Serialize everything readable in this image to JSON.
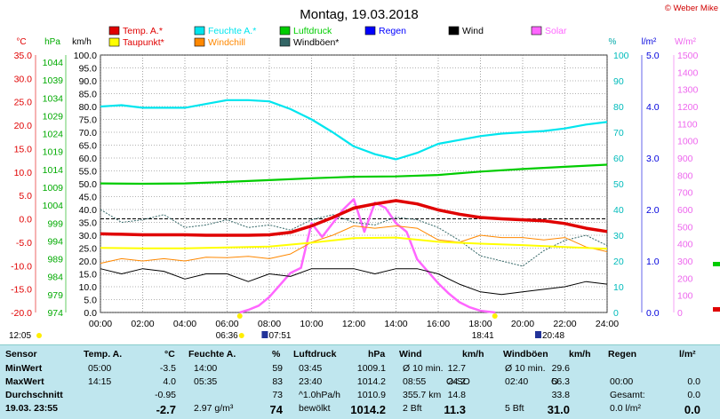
{
  "header": {
    "title": "Montag, 19.03.2018",
    "copyright": "© Weber Mike"
  },
  "legend": [
    {
      "label": "Temp. A.*",
      "color": "#e00000"
    },
    {
      "label": "Feuchte A.*",
      "color": "#00e5ee"
    },
    {
      "label": "Luftdruck",
      "color": "#00cc00"
    },
    {
      "label": "Regen",
      "color": "#0000ff"
    },
    {
      "label": "Wind",
      "color": "#000000"
    },
    {
      "label": "Solar",
      "color": "#ff66ff"
    },
    {
      "label": "Taupunkt*",
      "color": "#ffff00"
    },
    {
      "label": "Windchill",
      "color": "#ff8800"
    },
    {
      "label": "Windböen*",
      "color": "#336666"
    }
  ],
  "axes": {
    "temp_unit": "°C",
    "hpa_unit": "hPa",
    "kmh_unit": "km/h",
    "pct_unit": "%",
    "rain_unit": "l/m²",
    "solar_unit": "W/m²",
    "temp_ticks": [
      "35.0",
      "30.0",
      "25.0",
      "20.0",
      "15.0",
      "10.0",
      "5.0",
      "0.0",
      "-5.0",
      "-10.0",
      "-15.0",
      "-20.0"
    ],
    "hpa_ticks": [
      "1044",
      "1039",
      "1034",
      "1029",
      "1024",
      "1019",
      "1014",
      "1009",
      "1004",
      "999",
      "994",
      "989",
      "984",
      "979",
      "974"
    ],
    "kmh_ticks": [
      "100.0",
      "95.0",
      "90.0",
      "85.0",
      "80.0",
      "75.0",
      "70.0",
      "65.0",
      "60.0",
      "55.0",
      "50.0",
      "45.0",
      "40.0",
      "35.0",
      "30.0",
      "25.0",
      "20.0",
      "15.0",
      "10.0",
      "5.0",
      "0.0"
    ],
    "pct_ticks": [
      "100",
      "90",
      "80",
      "70",
      "60",
      "50",
      "40",
      "30",
      "20",
      "10",
      "0"
    ],
    "rain_ticks": [
      "5.0",
      "4.0",
      "3.0",
      "2.0",
      "1.0",
      "0.0"
    ],
    "solar_ticks": [
      "1500",
      "1400",
      "1300",
      "1200",
      "1100",
      "1000",
      "900",
      "800",
      "700",
      "600",
      "500",
      "400",
      "300",
      "200",
      "100",
      "0"
    ],
    "x_ticks": [
      "00:00",
      "02:00",
      "04:00",
      "06:00",
      "08:00",
      "10:00",
      "12:00",
      "14:00",
      "16:00",
      "18:00",
      "20:00",
      "22:00",
      "24:00"
    ]
  },
  "sun_moon": {
    "left_time": "12:05",
    "sunrise": "06:36",
    "moonrise": "07:51",
    "sunset": "18:41",
    "moonset": "20:48"
  },
  "chart_data": {
    "type": "line",
    "x_unit": "hours",
    "xlim": [
      0,
      24
    ],
    "series": [
      {
        "name": "Temp. A.*",
        "color": "#e00000",
        "axis": "°C",
        "x": [
          0,
          1,
          2,
          3,
          4,
          5,
          6,
          7,
          8,
          9,
          10,
          11,
          12,
          13,
          14,
          15,
          16,
          17,
          18,
          19,
          20,
          21,
          22,
          23,
          24
        ],
        "values": [
          -3.2,
          -3.3,
          -3.4,
          -3.4,
          -3.4,
          -3.5,
          -3.5,
          -3.5,
          -3.4,
          -2.9,
          -1.5,
          0.3,
          2.3,
          3.2,
          3.9,
          3.2,
          1.9,
          1.0,
          0.3,
          0.0,
          -0.2,
          -0.4,
          -1.0,
          -2.0,
          -2.7
        ]
      },
      {
        "name": "Feuchte A.*",
        "color": "#00e5ee",
        "axis": "%",
        "x": [
          0,
          1,
          2,
          3,
          4,
          5,
          6,
          7,
          8,
          9,
          10,
          11,
          12,
          13,
          14,
          15,
          16,
          17,
          18,
          19,
          20,
          21,
          22,
          23,
          24
        ],
        "values": [
          80,
          80.5,
          79.5,
          79.5,
          79.5,
          81,
          82.5,
          82.5,
          82,
          79,
          75,
          70,
          64.5,
          61.5,
          59.5,
          62,
          65.5,
          67,
          68.5,
          69.5,
          70,
          70.5,
          71.5,
          73,
          74
        ]
      },
      {
        "name": "Luftdruck",
        "color": "#00cc00",
        "axis": "hPa",
        "x": [
          0,
          2,
          4,
          6,
          8,
          10,
          12,
          14,
          16,
          18,
          20,
          22,
          24
        ],
        "values": [
          1009.1,
          1009.0,
          1009.1,
          1009.5,
          1010.0,
          1010.5,
          1010.9,
          1011.0,
          1011.4,
          1012.3,
          1013.0,
          1013.6,
          1014.2
        ]
      },
      {
        "name": "Taupunkt*",
        "color": "#ffff00",
        "axis": "°C",
        "x": [
          0,
          2,
          4,
          6,
          8,
          10,
          12,
          14,
          16,
          18,
          20,
          22,
          24
        ],
        "values": [
          -6.2,
          -6.3,
          -6.3,
          -6.1,
          -5.9,
          -5.1,
          -4.1,
          -4.0,
          -4.9,
          -5.3,
          -5.6,
          -6.0,
          -6.4
        ]
      },
      {
        "name": "Windchill",
        "color": "#ff8800",
        "axis": "°C",
        "x": [
          0,
          1,
          2,
          3,
          4,
          5,
          6,
          7,
          8,
          9,
          10,
          11,
          12,
          13,
          14,
          15,
          16,
          17,
          18,
          19,
          20,
          21,
          22,
          23,
          24
        ],
        "values": [
          -9.5,
          -8.5,
          -9.0,
          -8.5,
          -9.0,
          -8.2,
          -8.3,
          -8.0,
          -8.5,
          -7.5,
          -5.0,
          -3.5,
          -1.5,
          -2.0,
          -1.5,
          -2.0,
          -4.5,
          -5.0,
          -3.5,
          -4.0,
          -4.0,
          -4.5,
          -4.0,
          -6.0,
          -7.0
        ]
      },
      {
        "name": "Wind",
        "color": "#000000",
        "axis": "km/h",
        "x": [
          0,
          1,
          2,
          3,
          4,
          5,
          6,
          7,
          8,
          9,
          10,
          11,
          12,
          13,
          14,
          15,
          16,
          17,
          18,
          19,
          20,
          21,
          22,
          23,
          24
        ],
        "values": [
          17,
          15,
          17,
          16,
          13,
          15,
          15,
          12,
          15,
          14,
          17,
          17,
          17,
          15,
          17,
          17,
          15,
          11,
          8,
          7,
          8,
          9,
          10,
          12,
          11
        ]
      },
      {
        "name": "Windböen*",
        "color": "#336666",
        "axis": "km/h",
        "x": [
          0,
          1,
          2,
          3,
          4,
          5,
          6,
          7,
          8,
          9,
          10,
          11,
          12,
          13,
          14,
          15,
          16,
          17,
          18,
          19,
          20,
          21,
          22,
          23,
          24
        ],
        "values": [
          40,
          35,
          36,
          38,
          33,
          34,
          36,
          33,
          34,
          32,
          36,
          38,
          35,
          34,
          37,
          36,
          33,
          28,
          22,
          20,
          18,
          24,
          28,
          30,
          26
        ]
      },
      {
        "name": "Solar",
        "color": "#ff66ff",
        "axis": "W/m²",
        "x": [
          6.6,
          7,
          7.5,
          8,
          8.5,
          9,
          9.5,
          10,
          10.5,
          11,
          11.5,
          12,
          12.5,
          13,
          13.5,
          14,
          14.5,
          15,
          15.5,
          16,
          16.5,
          17,
          17.5,
          18,
          18.7
        ],
        "values": [
          0,
          15,
          40,
          90,
          160,
          230,
          260,
          520,
          440,
          520,
          600,
          660,
          470,
          640,
          610,
          520,
          470,
          310,
          240,
          170,
          110,
          60,
          30,
          10,
          0
        ]
      }
    ],
    "ylim_left_temp": [
      -20,
      35
    ],
    "ylim_hpa": [
      974,
      1044
    ],
    "ylim_kmh": [
      0,
      100
    ],
    "ylim_pct": [
      0,
      100
    ],
    "ylim_rain": [
      0,
      5
    ],
    "ylim_solar": [
      0,
      1500
    ]
  },
  "table": {
    "headers": {
      "sensor": "Sensor",
      "temp": "Temp. A.",
      "temp_u": "°C",
      "hum": "Feuchte A.",
      "hum_u": "%",
      "press": "Luftdruck",
      "press_u": "hPa",
      "wind": "Wind",
      "wind_u": "km/h",
      "gust": "Windböen",
      "gust_u": "km/h",
      "rain": "Regen",
      "rain_u": "l/m²"
    },
    "rows": [
      {
        "label": "MinWert",
        "t_time": "05:00",
        "t_val": "-3.5",
        "h_time": "14:00",
        "h_val": "59",
        "p_time": "03:45",
        "p_val": "1009.1",
        "w_time": "Ø 10 min.",
        "w_val": "12.7",
        "g_time": "Ø 10 min.",
        "g_val": "29.6",
        "r_time": "",
        "r_val": ""
      },
      {
        "label": "MaxWert",
        "t_time": "14:15",
        "t_val": "4.0",
        "h_time": "05:35",
        "h_val": "83",
        "p_time": "23:40",
        "p_val": "1014.2",
        "w_time": "08:55",
        "w_dir": "O-SO",
        "w_val": "24.2",
        "g_time": "02:40",
        "g_dir": "O",
        "g_val": "56.3",
        "r_time": "00:00",
        "r_val": "0.0"
      },
      {
        "label": "Durchschnitt",
        "t_time": "",
        "t_val": "-0.95",
        "h_time": "",
        "h_val": "73",
        "p_time": "^1.0hPa/h",
        "p_val": "1010.9",
        "w_time": "355.7 km",
        "w_val": "14.8",
        "g_time": "",
        "g_val": "33.8",
        "r_time": "Gesamt:",
        "r_val": "0.0"
      },
      {
        "label": "19.03. 23:55",
        "t_time": "",
        "t_val": "-2.7",
        "h_time": "2.97 g/m³",
        "h_val": "74",
        "p_time": "bewölkt",
        "p_val": "1014.2",
        "w_time": "2 Bft",
        "w_val": "11.3",
        "g_time": "5 Bft",
        "g_val": "31.0",
        "r_time": "0.0 l/m²",
        "r_val": "0.0"
      }
    ]
  }
}
